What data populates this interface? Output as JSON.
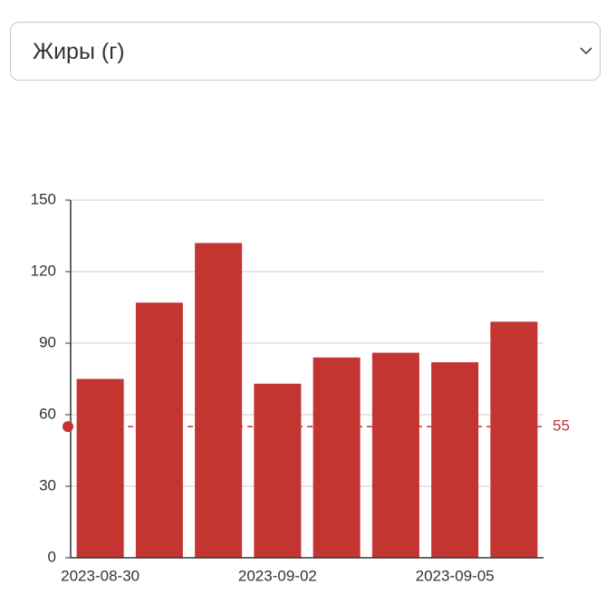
{
  "dropdown": {
    "label": "Жиры (г)"
  },
  "chart_data": {
    "type": "bar",
    "categories": [
      "2023-08-30",
      null,
      null,
      "2023-09-02",
      null,
      null,
      "2023-09-05",
      null
    ],
    "values": [
      75,
      107,
      132,
      73,
      84,
      86,
      82,
      99
    ],
    "color": "#c23531",
    "ylim": [
      0,
      150
    ],
    "yticks": [
      0,
      30,
      60,
      90,
      120,
      150
    ],
    "grid": true,
    "reference_line": {
      "value": 55
    }
  }
}
